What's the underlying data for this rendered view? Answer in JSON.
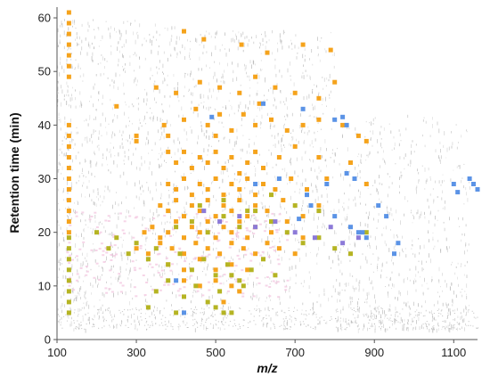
{
  "chart_data": {
    "type": "scatter",
    "title": "",
    "xlabel": "m/z",
    "ylabel": "Retention time (min)",
    "xlim": [
      100,
      1160
    ],
    "ylim": [
      0,
      62
    ],
    "x_ticks": [
      100,
      300,
      500,
      700,
      900,
      1100
    ],
    "y_ticks": [
      0,
      10,
      20,
      30,
      40,
      50,
      60
    ],
    "grid": false,
    "legend": "none",
    "colors": {
      "background_features": "#b4b4b4",
      "pink_features": "#f3c7e0",
      "orange": "#f5a31c",
      "olive": "#b5b423",
      "blue": "#5b93e6",
      "purple": "#8c7ad8"
    },
    "series": [
      {
        "color": "#f5a31c",
        "points": [
          [
            130,
            61
          ],
          [
            130,
            59
          ],
          [
            130,
            57
          ],
          [
            130,
            55
          ],
          [
            130,
            53
          ],
          [
            130,
            51
          ],
          [
            130,
            49
          ],
          [
            130,
            40
          ],
          [
            130,
            38
          ],
          [
            130,
            36
          ],
          [
            130,
            34
          ],
          [
            130,
            32
          ],
          [
            130,
            30
          ],
          [
            130,
            28
          ],
          [
            130,
            26
          ],
          [
            130,
            24
          ],
          [
            130,
            22
          ],
          [
            130,
            20
          ],
          [
            420,
            57.5
          ],
          [
            470,
            56
          ],
          [
            565,
            55
          ],
          [
            630,
            53.5
          ],
          [
            720,
            55
          ],
          [
            790,
            54
          ],
          [
            350,
            47
          ],
          [
            400,
            46
          ],
          [
            460,
            48
          ],
          [
            510,
            47
          ],
          [
            560,
            46
          ],
          [
            600,
            49
          ],
          [
            650,
            47
          ],
          [
            700,
            46
          ],
          [
            760,
            45
          ],
          [
            800,
            48
          ],
          [
            300,
            38
          ],
          [
            300,
            37
          ],
          [
            370,
            40
          ],
          [
            380,
            38
          ],
          [
            420,
            41
          ],
          [
            450,
            43
          ],
          [
            480,
            40
          ],
          [
            510,
            42
          ],
          [
            540,
            39
          ],
          [
            570,
            42
          ],
          [
            600,
            40
          ],
          [
            640,
            41
          ],
          [
            680,
            39
          ],
          [
            720,
            40
          ],
          [
            760,
            41
          ],
          [
            820,
            40
          ],
          [
            860,
            38
          ],
          [
            380,
            35
          ],
          [
            400,
            33
          ],
          [
            420,
            35
          ],
          [
            440,
            32
          ],
          [
            460,
            34
          ],
          [
            480,
            33
          ],
          [
            500,
            35
          ],
          [
            520,
            32
          ],
          [
            540,
            34
          ],
          [
            560,
            31
          ],
          [
            580,
            33
          ],
          [
            600,
            35
          ],
          [
            620,
            32
          ],
          [
            660,
            34
          ],
          [
            700,
            36
          ],
          [
            760,
            34
          ],
          [
            840,
            33
          ],
          [
            880,
            37
          ],
          [
            380,
            29
          ],
          [
            400,
            28
          ],
          [
            420,
            30
          ],
          [
            440,
            27
          ],
          [
            460,
            29
          ],
          [
            480,
            28
          ],
          [
            500,
            30
          ],
          [
            520,
            27
          ],
          [
            540,
            29
          ],
          [
            560,
            28
          ],
          [
            580,
            30
          ],
          [
            600,
            27
          ],
          [
            620,
            29
          ],
          [
            650,
            28
          ],
          [
            690,
            30
          ],
          [
            730,
            28
          ],
          [
            780,
            30
          ],
          [
            880,
            29
          ],
          [
            360,
            25
          ],
          [
            380,
            24
          ],
          [
            400,
            26
          ],
          [
            420,
            23
          ],
          [
            440,
            25
          ],
          [
            460,
            24
          ],
          [
            480,
            26
          ],
          [
            500,
            23
          ],
          [
            520,
            25
          ],
          [
            540,
            24
          ],
          [
            560,
            26
          ],
          [
            580,
            23
          ],
          [
            600,
            25
          ],
          [
            630,
            24
          ],
          [
            670,
            26
          ],
          [
            720,
            23
          ],
          [
            760,
            25
          ],
          [
            320,
            20
          ],
          [
            340,
            21
          ],
          [
            360,
            19
          ],
          [
            380,
            20
          ],
          [
            400,
            22
          ],
          [
            420,
            19
          ],
          [
            440,
            21
          ],
          [
            460,
            20
          ],
          [
            480,
            22
          ],
          [
            500,
            19
          ],
          [
            520,
            21
          ],
          [
            540,
            20
          ],
          [
            560,
            22
          ],
          [
            580,
            19
          ],
          [
            600,
            21
          ],
          [
            640,
            20
          ],
          [
            680,
            22
          ],
          [
            720,
            19
          ],
          [
            300,
            17
          ],
          [
            330,
            16
          ],
          [
            360,
            18
          ],
          [
            390,
            17
          ],
          [
            420,
            16
          ],
          [
            450,
            18
          ],
          [
            480,
            17
          ],
          [
            510,
            16
          ],
          [
            540,
            18
          ],
          [
            570,
            17
          ],
          [
            600,
            16
          ],
          [
            630,
            18
          ],
          [
            660,
            17
          ],
          [
            700,
            16
          ],
          [
            380,
            14
          ],
          [
            420,
            13
          ],
          [
            460,
            15
          ],
          [
            500,
            13
          ],
          [
            540,
            14
          ],
          [
            580,
            13
          ],
          [
            420,
            11
          ],
          [
            460,
            10
          ],
          [
            500,
            11
          ],
          [
            540,
            10
          ],
          [
            560,
            9
          ],
          [
            520,
            7
          ],
          [
            250,
            43.5
          ],
          [
            500,
            38
          ],
          [
            610,
            44
          ]
        ]
      },
      {
        "color": "#b5b423",
        "points": [
          [
            130,
            19
          ],
          [
            130,
            17
          ],
          [
            130,
            15
          ],
          [
            130,
            13
          ],
          [
            130,
            11
          ],
          [
            130,
            9
          ],
          [
            130,
            7
          ],
          [
            130,
            5
          ],
          [
            200,
            20
          ],
          [
            230,
            17
          ],
          [
            250,
            19
          ],
          [
            280,
            16
          ],
          [
            300,
            18
          ],
          [
            330,
            15
          ],
          [
            350,
            17
          ],
          [
            380,
            14
          ],
          [
            410,
            16
          ],
          [
            440,
            13
          ],
          [
            470,
            15
          ],
          [
            500,
            12
          ],
          [
            530,
            14
          ],
          [
            560,
            11
          ],
          [
            590,
            13
          ],
          [
            620,
            15
          ],
          [
            650,
            12
          ],
          [
            400,
            21
          ],
          [
            440,
            22
          ],
          [
            480,
            20
          ],
          [
            520,
            23
          ],
          [
            560,
            21
          ],
          [
            600,
            24
          ],
          [
            640,
            22
          ],
          [
            680,
            20
          ],
          [
            720,
            18
          ],
          [
            760,
            19
          ],
          [
            800,
            17
          ],
          [
            840,
            16
          ],
          [
            880,
            20
          ],
          [
            350,
            9
          ],
          [
            380,
            11
          ],
          [
            420,
            8
          ],
          [
            450,
            10
          ],
          [
            480,
            7
          ],
          [
            510,
            9
          ],
          [
            540,
            12
          ],
          [
            570,
            10
          ],
          [
            330,
            6
          ],
          [
            400,
            5
          ],
          [
            500,
            6
          ],
          [
            520,
            5
          ],
          [
            540,
            5
          ],
          [
            460,
            25
          ],
          [
            520,
            26
          ],
          [
            580,
            24
          ],
          [
            640,
            27
          ],
          [
            700,
            25
          ],
          [
            760,
            24
          ]
        ]
      },
      {
        "color": "#5b93e6",
        "points": [
          [
            490,
            41.5
          ],
          [
            620,
            44
          ],
          [
            720,
            43
          ],
          [
            800,
            41
          ],
          [
            820,
            41.5
          ],
          [
            830,
            40
          ],
          [
            600,
            29
          ],
          [
            660,
            30
          ],
          [
            730,
            27
          ],
          [
            780,
            29
          ],
          [
            830,
            31
          ],
          [
            850,
            30
          ],
          [
            710,
            22.5
          ],
          [
            740,
            25
          ],
          [
            800,
            23
          ],
          [
            840,
            21
          ],
          [
            860,
            20
          ],
          [
            870,
            20
          ],
          [
            880,
            19
          ],
          [
            910,
            25
          ],
          [
            930,
            23
          ],
          [
            960,
            18
          ],
          [
            950,
            16
          ],
          [
            1100,
            29
          ],
          [
            1110,
            27.5
          ],
          [
            1140,
            30
          ],
          [
            1150,
            29
          ],
          [
            1160,
            28
          ],
          [
            400,
            11
          ],
          [
            420,
            5
          ]
        ]
      },
      {
        "color": "#8c7ad8",
        "points": [
          [
            470,
            24
          ],
          [
            510,
            22
          ],
          [
            560,
            23
          ],
          [
            600,
            21
          ],
          [
            650,
            22
          ],
          [
            700,
            20
          ],
          [
            750,
            19
          ],
          [
            790,
            21
          ],
          [
            820,
            18
          ],
          [
            860,
            19
          ]
        ]
      }
    ]
  }
}
